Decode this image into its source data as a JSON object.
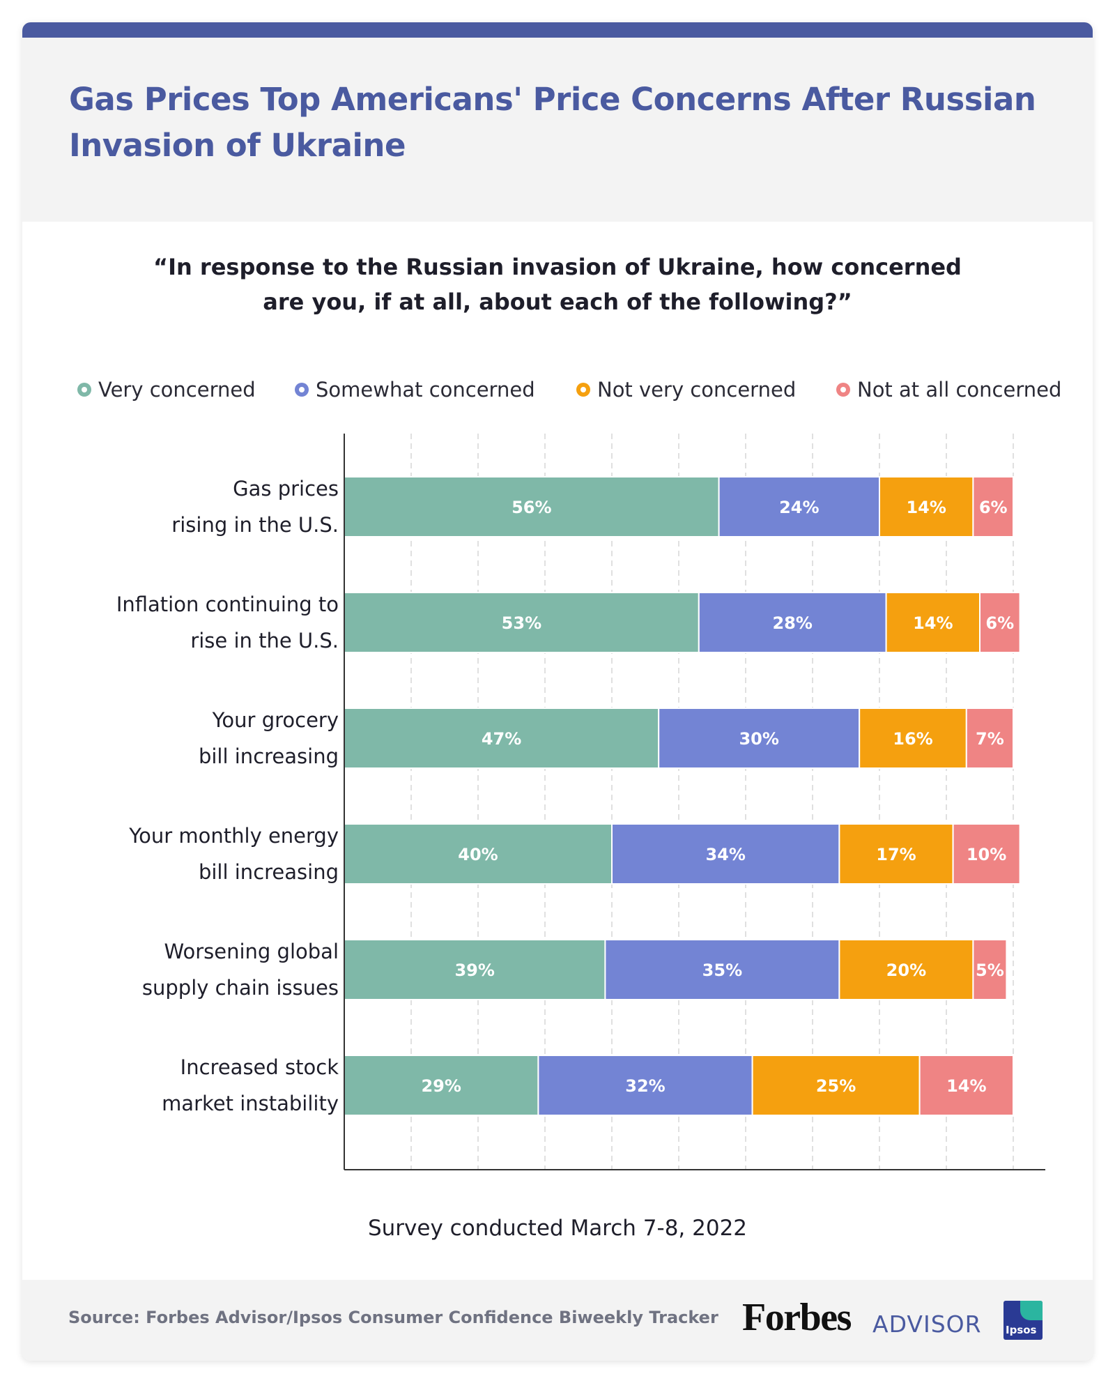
{
  "title": "Gas Prices Top Americans' Price Concerns After Russian Invasion of Ukraine",
  "question": "“In response to the Russian invasion of Ukraine, how concerned are you, if at all, about each of the following?”",
  "colors": {
    "accent": "#4a5aa0",
    "very": "#7fb8a8",
    "somewhat": "#7384d4",
    "not_very": "#f5a00f",
    "not_at_all": "#ef8484"
  },
  "survey_note": "Survey conducted March 7-8, 2022",
  "source": "Source: Forbes Advisor/Ipsos Consumer Confidence Biweekly Tracker",
  "brand": {
    "forbes": "Forbes",
    "advisor": "ADVISOR",
    "ipsos": "Ipsos"
  },
  "chart_data": {
    "type": "bar",
    "orientation": "horizontal",
    "stacked": true,
    "xlim": [
      0,
      100
    ],
    "grid": true,
    "legend": "top",
    "categories": [
      [
        "Gas prices",
        "rising in the U.S."
      ],
      [
        "Inflation continuing to",
        "rise in the U.S."
      ],
      [
        "Your grocery",
        "bill increasing"
      ],
      [
        "Your monthly energy",
        "bill increasing"
      ],
      [
        "Worsening global",
        "supply chain issues"
      ],
      [
        "Increased stock",
        "market instability"
      ]
    ],
    "series": [
      {
        "name": "Very concerned",
        "color": "#7fb8a8",
        "values": [
          56,
          53,
          47,
          40,
          39,
          29
        ]
      },
      {
        "name": "Somewhat concerned",
        "color": "#7384d4",
        "values": [
          24,
          28,
          30,
          34,
          35,
          32
        ]
      },
      {
        "name": "Not very concerned",
        "color": "#f5a00f",
        "values": [
          14,
          14,
          16,
          17,
          20,
          25
        ]
      },
      {
        "name": "Not at all concerned",
        "color": "#ef8484",
        "values": [
          6,
          6,
          7,
          10,
          5,
          14
        ]
      }
    ]
  }
}
